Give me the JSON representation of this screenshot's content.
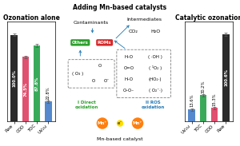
{
  "chart_data": [
    {
      "type": "bar",
      "title": "Ozonation alone",
      "categories": [
        "Raw",
        "COD",
        "TOC",
        "UV₂₅₄"
      ],
      "values": [
        100.0,
        74.5,
        87.8,
        22.8
      ],
      "value_labels": [
        "100.0%",
        "74.5%",
        "87.8%",
        "22.8%"
      ],
      "yerr": [
        1.5,
        1.5,
        1.5,
        1.5
      ],
      "colors": [
        "#2b2b2b",
        "#e05070",
        "#3aaa5a",
        "#5588cc"
      ],
      "ylim": [
        0,
        115
      ],
      "yticks": [],
      "tick_labels": "x",
      "data_labels": true,
      "grid": false
    },
    {
      "type": "diagram",
      "title": "Adding Mn-based catalysts",
      "annotations": [
        "( O₃ )",
        "O",
        "O",
        "O⁻",
        "H–O",
        "( ·OH )",
        "O=O",
        "( ¹O₂ )",
        "H–O",
        "(HO₂·)",
        "O–O–",
        "( O₂⁻·)",
        "Others",
        "ROMs",
        "Contaminants",
        "Intermediates",
        "CO₂",
        "H₂O",
        "I Direct\noxidation",
        "II ROS\noxidation",
        "Mn⁺",
        "e⁻",
        "Mn⁺",
        "Mn-based catalyst"
      ]
    },
    {
      "type": "bar",
      "title": "Catalytic ozonation",
      "categories": [
        "UV₂₅₄",
        "TOC",
        "COD",
        "Raw"
      ],
      "values": [
        13.6,
        30.2,
        15.3,
        100.6
      ],
      "value_labels": [
        "13.6%",
        "30.2%",
        "15.3%",
        "100.6%"
      ],
      "yerr": [
        1.5,
        1.5,
        1.5,
        1.5
      ],
      "colors": [
        "#5588cc",
        "#3aaa5a",
        "#e05070",
        "#2b2b2b"
      ],
      "ylim": [
        0,
        115
      ],
      "yticks": [],
      "tick_labels": "x",
      "data_labels": true,
      "grid": false
    }
  ]
}
